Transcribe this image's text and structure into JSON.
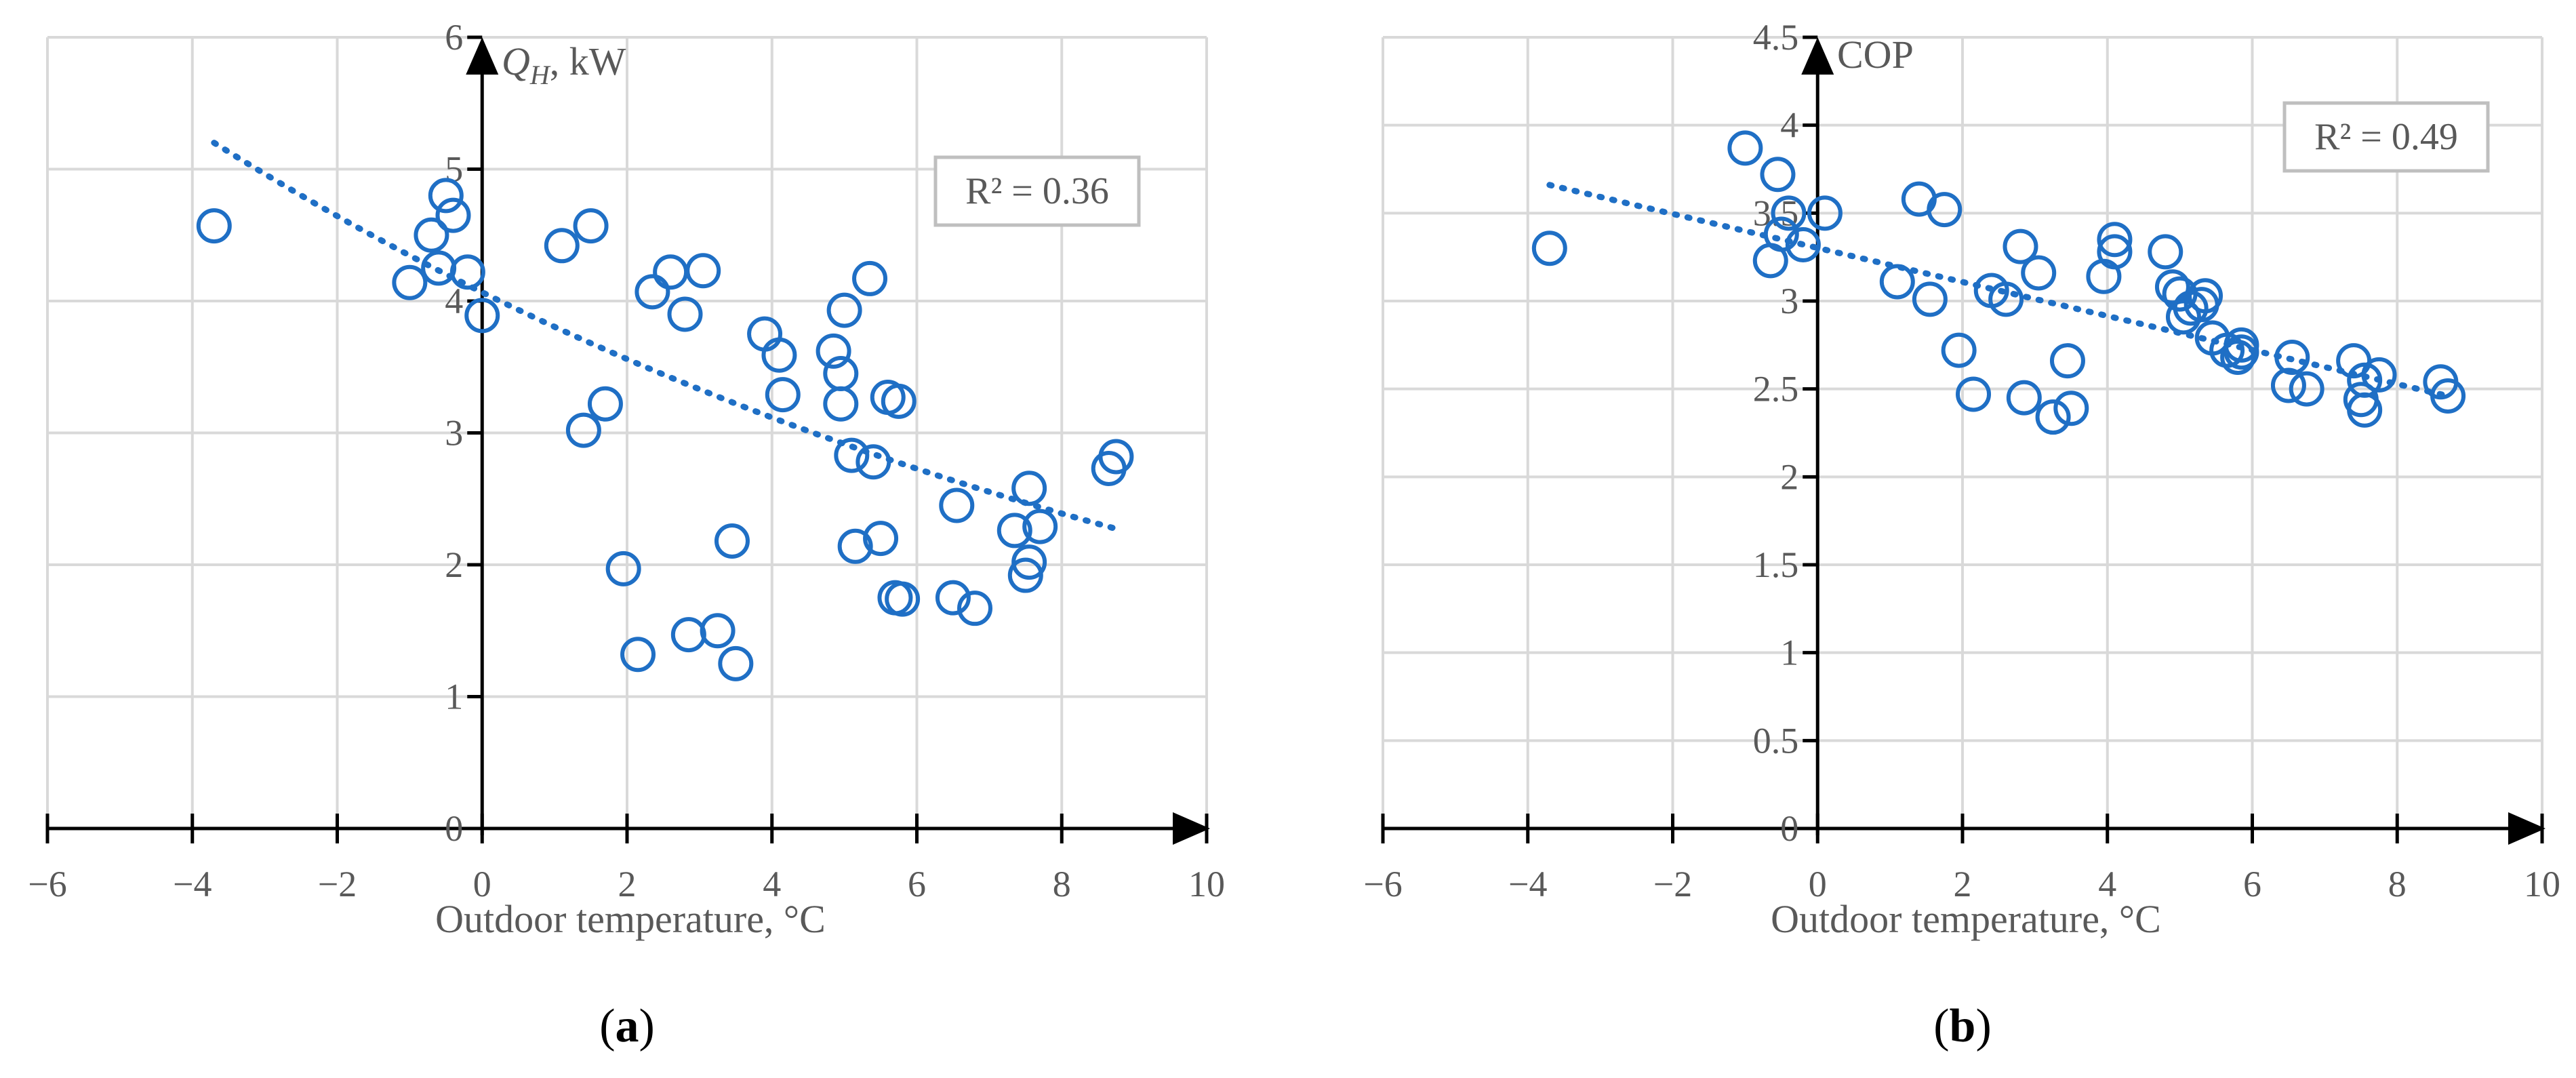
{
  "colors": {
    "series": "#1f6fc5",
    "grid": "#d9d9d9",
    "axis": "#000000",
    "label": "#595959"
  },
  "panels": [
    {
      "panel_label": "a",
      "ylabel_main": "Q",
      "ylabel_sub": "H",
      "ylabel_rest": ", kW",
      "xlabel": "Outdoor temperature, °C",
      "r2": "R² = 0.36"
    },
    {
      "panel_label": "b",
      "ylabel_main": "COP",
      "ylabel_sub": "",
      "ylabel_rest": "",
      "xlabel": "Outdoor temperature, °C",
      "r2": "R² = 0.49"
    }
  ],
  "chart_data": [
    {
      "type": "scatter",
      "title": "",
      "xlabel": "Outdoor temperature, °C",
      "ylabel": "Q_H, kW",
      "xlim": [
        -6,
        10
      ],
      "ylim": [
        0,
        6
      ],
      "xticks": [
        "−6",
        "−4",
        "−2",
        "0",
        "2",
        "4",
        "6",
        "8",
        "10"
      ],
      "yticks": [
        "0",
        "1",
        "2",
        "3",
        "4",
        "5",
        "6"
      ],
      "grid": true,
      "trendline": {
        "type": "power",
        "from_x": -3.7,
        "to_x": 8.7,
        "y_start": 5.2,
        "y_end": 2.28,
        "r2": 0.36
      },
      "series": [
        {
          "points": [
            [
              -3.7,
              4.57
            ],
            [
              -1.0,
              4.14
            ],
            [
              -0.5,
              4.8
            ],
            [
              -0.4,
              4.65
            ],
            [
              -0.7,
              4.5
            ],
            [
              -0.6,
              4.25
            ],
            [
              -0.2,
              4.22
            ],
            [
              0.0,
              3.89
            ],
            [
              1.1,
              4.42
            ],
            [
              1.5,
              4.57
            ],
            [
              1.4,
              3.02
            ],
            [
              1.7,
              3.22
            ],
            [
              1.95,
              1.97
            ],
            [
              2.15,
              1.32
            ],
            [
              2.35,
              4.07
            ],
            [
              2.6,
              4.22
            ],
            [
              2.8,
              3.9
            ],
            [
              2.85,
              1.47
            ],
            [
              3.05,
              4.23
            ],
            [
              3.25,
              1.5
            ],
            [
              3.45,
              2.18
            ],
            [
              3.5,
              1.25
            ],
            [
              3.9,
              3.75
            ],
            [
              4.1,
              3.59
            ],
            [
              4.15,
              3.29
            ],
            [
              4.85,
              3.62
            ],
            [
              4.95,
              3.45
            ],
            [
              4.95,
              3.22
            ],
            [
              5.0,
              3.93
            ],
            [
              5.1,
              2.83
            ],
            [
              5.15,
              2.14
            ],
            [
              5.35,
              4.17
            ],
            [
              5.4,
              2.78
            ],
            [
              5.5,
              2.2
            ],
            [
              5.6,
              3.27
            ],
            [
              5.75,
              3.24
            ],
            [
              5.7,
              1.75
            ],
            [
              5.8,
              1.74
            ],
            [
              6.5,
              1.75
            ],
            [
              6.55,
              2.45
            ],
            [
              6.8,
              1.67
            ],
            [
              7.35,
              2.26
            ],
            [
              7.5,
              1.92
            ],
            [
              7.55,
              2.58
            ],
            [
              7.55,
              2.02
            ],
            [
              7.7,
              2.29
            ],
            [
              8.65,
              2.73
            ],
            [
              8.75,
              2.82
            ]
          ]
        }
      ]
    },
    {
      "type": "scatter",
      "title": "",
      "xlabel": "Outdoor temperature, °C",
      "ylabel": "COP",
      "xlim": [
        -6,
        10
      ],
      "ylim": [
        0,
        4.5
      ],
      "xticks": [
        "−6",
        "−4",
        "−2",
        "0",
        "2",
        "4",
        "6",
        "8",
        "10"
      ],
      "yticks": [
        "0",
        "0.5",
        "1",
        "1.5",
        "2",
        "2.5",
        "3",
        "3.5",
        "4",
        "4.5"
      ],
      "grid": true,
      "trendline": {
        "type": "linear",
        "from_x": -3.7,
        "to_x": 8.7,
        "y_start": 3.66,
        "y_end": 2.46,
        "r2": 0.49
      },
      "series": [
        {
          "points": [
            [
              -3.7,
              3.3
            ],
            [
              -1.0,
              3.87
            ],
            [
              -0.55,
              3.72
            ],
            [
              -0.4,
              3.5
            ],
            [
              -0.65,
              3.23
            ],
            [
              -0.5,
              3.38
            ],
            [
              -0.2,
              3.32
            ],
            [
              0.1,
              3.5
            ],
            [
              1.1,
              3.11
            ],
            [
              1.4,
              3.58
            ],
            [
              1.75,
              3.52
            ],
            [
              1.55,
              3.01
            ],
            [
              1.95,
              2.72
            ],
            [
              2.15,
              2.47
            ],
            [
              2.4,
              3.06
            ],
            [
              2.6,
              3.01
            ],
            [
              2.8,
              3.31
            ],
            [
              2.85,
              2.45
            ],
            [
              3.05,
              3.16
            ],
            [
              3.25,
              2.34
            ],
            [
              3.45,
              2.66
            ],
            [
              3.5,
              2.39
            ],
            [
              3.95,
              3.14
            ],
            [
              4.1,
              3.35
            ],
            [
              4.1,
              3.28
            ],
            [
              4.8,
              3.28
            ],
            [
              4.9,
              3.08
            ],
            [
              5.0,
              3.04
            ],
            [
              5.05,
              2.91
            ],
            [
              5.15,
              2.96
            ],
            [
              5.3,
              2.98
            ],
            [
              5.35,
              3.03
            ],
            [
              5.45,
              2.79
            ],
            [
              5.65,
              2.72
            ],
            [
              5.8,
              2.68
            ],
            [
              5.85,
              2.75
            ],
            [
              5.85,
              2.71
            ],
            [
              6.5,
              2.52
            ],
            [
              6.55,
              2.68
            ],
            [
              6.75,
              2.5
            ],
            [
              7.4,
              2.66
            ],
            [
              7.5,
              2.44
            ],
            [
              7.55,
              2.38
            ],
            [
              7.55,
              2.55
            ],
            [
              7.75,
              2.58
            ],
            [
              8.6,
              2.54
            ],
            [
              8.7,
              2.46
            ]
          ]
        }
      ]
    }
  ]
}
